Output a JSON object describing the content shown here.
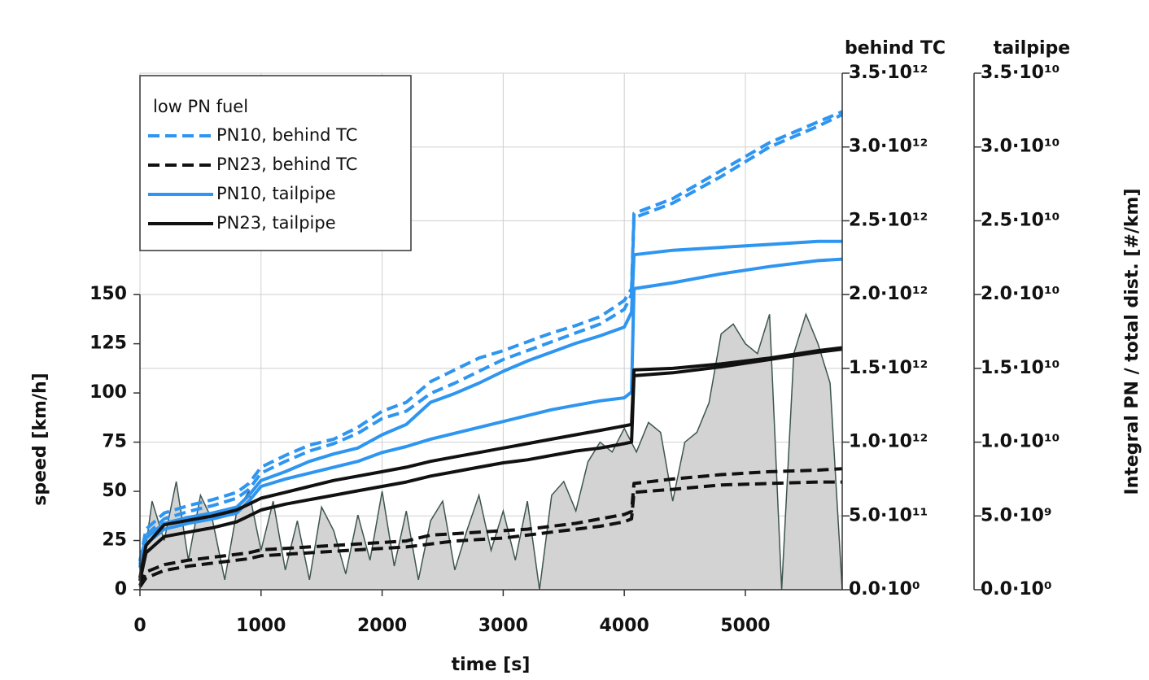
{
  "chart_data": {
    "type": "line",
    "xlabel": "time [s]",
    "ylabel": "speed [km/h]",
    "y2label": "behind TC",
    "y3label": "tailpipe",
    "right_label": "Integral PN / total dist. [#/km]",
    "legend_title": "low PN fuel",
    "grid": true,
    "xlim": [
      0,
      5800
    ],
    "xticks": [
      0,
      1000,
      2000,
      3000,
      4000,
      5000
    ],
    "ylim": [
      0,
      262.5
    ],
    "yticks": [
      0,
      25,
      50,
      75,
      100,
      125,
      150
    ],
    "y2lim": [
      0,
      3500000000000.0
    ],
    "y2ticks": [
      {
        "value": 0,
        "label": "0.0·10⁰"
      },
      {
        "value": 500000000000.0,
        "label": "5.0·10¹¹"
      },
      {
        "value": 1000000000000.0,
        "label": "1.0·10¹²"
      },
      {
        "value": 1500000000000.0,
        "label": "1.5·10¹²"
      },
      {
        "value": 2000000000000.0,
        "label": "2.0·10¹²"
      },
      {
        "value": 2500000000000.0,
        "label": "2.5·10¹²"
      },
      {
        "value": 3000000000000.0,
        "label": "3.0·10¹²"
      },
      {
        "value": 3500000000000.0,
        "label": "3.5·10¹²"
      }
    ],
    "y3lim": [
      0,
      35000000000.0
    ],
    "y3ticks": [
      {
        "value": 0,
        "label": "0.0·10⁰"
      },
      {
        "value": 5000000000.0,
        "label": "5.0·10⁹"
      },
      {
        "value": 10000000000.0,
        "label": "1.0·10¹⁰"
      },
      {
        "value": 15000000000.0,
        "label": "1.5·10¹⁰"
      },
      {
        "value": 20000000000.0,
        "label": "2.0·10¹⁰"
      },
      {
        "value": 25000000000.0,
        "label": "2.5·10¹⁰"
      },
      {
        "value": 30000000000.0,
        "label": "3.0·10¹⁰"
      },
      {
        "value": 35000000000.0,
        "label": "3.5·10¹⁰"
      }
    ],
    "x": [
      0,
      50,
      200,
      400,
      600,
      800,
      900,
      1000,
      1200,
      1400,
      1600,
      1800,
      2000,
      2200,
      2400,
      2600,
      2800,
      3000,
      3200,
      3400,
      3600,
      3800,
      4000,
      4060,
      4080,
      4400,
      4800,
      5200,
      5600,
      5800
    ],
    "series": [
      {
        "name": "PN10, behind TC",
        "color": "#2e95f0",
        "dashed": true,
        "axis": "y2",
        "runs": [
          [
            190000000000.0,
            410000000000.0,
            520000000000.0,
            570000000000.0,
            610000000000.0,
            660000000000.0,
            720000000000.0,
            830000000000.0,
            910000000000.0,
            980000000000.0,
            1020000000000.0,
            1100000000000.0,
            1210000000000.0,
            1270000000000.0,
            1410000000000.0,
            1490000000000.0,
            1570000000000.0,
            1620000000000.0,
            1680000000000.0,
            1740000000000.0,
            1790000000000.0,
            1850000000000.0,
            1960000000000.0,
            2040000000000.0,
            2550000000000.0,
            2650000000000.0,
            2840000000000.0,
            3030000000000.0,
            3170000000000.0,
            3240000000000.0
          ],
          [
            150000000000.0,
            370000000000.0,
            480000000000.0,
            530000000000.0,
            570000000000.0,
            620000000000.0,
            680000000000.0,
            790000000000.0,
            870000000000.0,
            940000000000.0,
            990000000000.0,
            1060000000000.0,
            1160000000000.0,
            1210000000000.0,
            1330000000000.0,
            1400000000000.0,
            1480000000000.0,
            1560000000000.0,
            1620000000000.0,
            1680000000000.0,
            1740000000000.0,
            1800000000000.0,
            1900000000000.0,
            2000000000000.0,
            2520000000000.0,
            2620000000000.0,
            2800000000000.0,
            3000000000000.0,
            3140000000000.0,
            3220000000000.0
          ]
        ]
      },
      {
        "name": "PN23, behind TC",
        "color": "#111111",
        "dashed": true,
        "axis": "y2",
        "runs": [
          [
            30000000000.0,
            120000000000.0,
            170000000000.0,
            200000000000.0,
            220000000000.0,
            240000000000.0,
            250000000000.0,
            270000000000.0,
            280000000000.0,
            290000000000.0,
            300000000000.0,
            310000000000.0,
            320000000000.0,
            330000000000.0,
            370000000000.0,
            380000000000.0,
            390000000000.0,
            400000000000.0,
            410000000000.0,
            430000000000.0,
            450000000000.0,
            480000000000.0,
            510000000000.0,
            530000000000.0,
            720000000000.0,
            750000000000.0,
            780000000000.0,
            800000000000.0,
            810000000000.0,
            820000000000.0
          ],
          [
            20000000000.0,
            80000000000.0,
            130000000000.0,
            160000000000.0,
            180000000000.0,
            200000000000.0,
            210000000000.0,
            230000000000.0,
            240000000000.0,
            250000000000.0,
            260000000000.0,
            270000000000.0,
            280000000000.0,
            290000000000.0,
            310000000000.0,
            330000000000.0,
            340000000000.0,
            350000000000.0,
            370000000000.0,
            390000000000.0,
            410000000000.0,
            430000000000.0,
            460000000000.0,
            480000000000.0,
            660000000000.0,
            680000000000.0,
            710000000000.0,
            720000000000.0,
            730000000000.0,
            730000000000.0
          ]
        ]
      },
      {
        "name": "PN10, tailpipe",
        "color": "#2e95f0",
        "dashed": false,
        "axis": "y3",
        "runs": [
          [
            2000000000.0,
            3500000000.0,
            4500000000.0,
            4900000000.0,
            5200000000.0,
            5600000000.0,
            6400000000.0,
            7400000000.0,
            8000000000.0,
            8700000000.0,
            9200000000.0,
            9600000000.0,
            10500000000.0,
            11200000000.0,
            12700000000.0,
            13300000000.0,
            14000000000.0,
            14800000000.0,
            15500000000.0,
            16100000000.0,
            16700000000.0,
            17200000000.0,
            17800000000.0,
            18800000000.0,
            22700000000.0,
            23000000000.0,
            23200000000.0,
            23400000000.0,
            23600000000.0,
            23600000000.0
          ],
          [
            1700000000.0,
            3100000000.0,
            4100000000.0,
            4500000000.0,
            4800000000.0,
            5200000000.0,
            6000000000.0,
            7000000000.0,
            7500000000.0,
            7900000000.0,
            8300000000.0,
            8700000000.0,
            9300000000.0,
            9700000000.0,
            10200000000.0,
            10600000000.0,
            11000000000.0,
            11400000000.0,
            11800000000.0,
            12200000000.0,
            12500000000.0,
            12800000000.0,
            13000000000.0,
            13400000000.0,
            20400000000.0,
            20800000000.0,
            21400000000.0,
            21900000000.0,
            22300000000.0,
            22400000000.0
          ]
        ]
      },
      {
        "name": "PN23, tailpipe",
        "color": "#111111",
        "dashed": false,
        "axis": "y3",
        "runs": [
          [
            800000000.0,
            3000000000.0,
            4400000000.0,
            4700000000.0,
            5000000000.0,
            5400000000.0,
            5800000000.0,
            6200000000.0,
            6600000000.0,
            7000000000.0,
            7400000000.0,
            7700000000.0,
            8000000000.0,
            8300000000.0,
            8700000000.0,
            9000000000.0,
            9300000000.0,
            9600000000.0,
            9900000000.0,
            10200000000.0,
            10500000000.0,
            10800000000.0,
            11100000000.0,
            11200000000.0,
            14900000000.0,
            15000000000.0,
            15300000000.0,
            15700000000.0,
            16200000000.0,
            16400000000.0
          ],
          [
            600000000.0,
            2500000000.0,
            3600000000.0,
            3900000000.0,
            4200000000.0,
            4600000000.0,
            5000000000.0,
            5400000000.0,
            5800000000.0,
            6100000000.0,
            6400000000.0,
            6700000000.0,
            7000000000.0,
            7300000000.0,
            7700000000.0,
            8000000000.0,
            8300000000.0,
            8600000000.0,
            8800000000.0,
            9100000000.0,
            9400000000.0,
            9600000000.0,
            9900000000.0,
            10000000000.0,
            14500000000.0,
            14700000000.0,
            15100000000.0,
            15600000000.0,
            16100000000.0,
            16300000000.0
          ]
        ]
      }
    ],
    "speed": {
      "color": "#d3d3d3",
      "line_color": "#3d5550",
      "x": [
        0,
        100,
        200,
        300,
        400,
        500,
        600,
        700,
        800,
        900,
        1000,
        1100,
        1200,
        1300,
        1400,
        1500,
        1600,
        1700,
        1800,
        1900,
        2000,
        2100,
        2200,
        2300,
        2400,
        2500,
        2600,
        2700,
        2800,
        2900,
        3000,
        3100,
        3200,
        3300,
        3400,
        3500,
        3600,
        3700,
        3800,
        3900,
        4000,
        4100,
        4200,
        4300,
        4400,
        4500,
        4600,
        4700,
        4800,
        4900,
        5000,
        5100,
        5200,
        5300,
        5400,
        5500,
        5600,
        5700,
        5800
      ],
      "values": [
        0,
        45,
        25,
        55,
        15,
        48,
        35,
        5,
        40,
        50,
        20,
        45,
        10,
        35,
        5,
        42,
        30,
        8,
        38,
        15,
        50,
        12,
        40,
        5,
        35,
        45,
        10,
        30,
        48,
        20,
        40,
        15,
        45,
        0,
        48,
        55,
        40,
        65,
        75,
        70,
        82,
        70,
        85,
        80,
        45,
        75,
        80,
        95,
        130,
        135,
        125,
        120,
        140,
        0,
        120,
        140,
        125,
        105,
        0
      ]
    }
  }
}
